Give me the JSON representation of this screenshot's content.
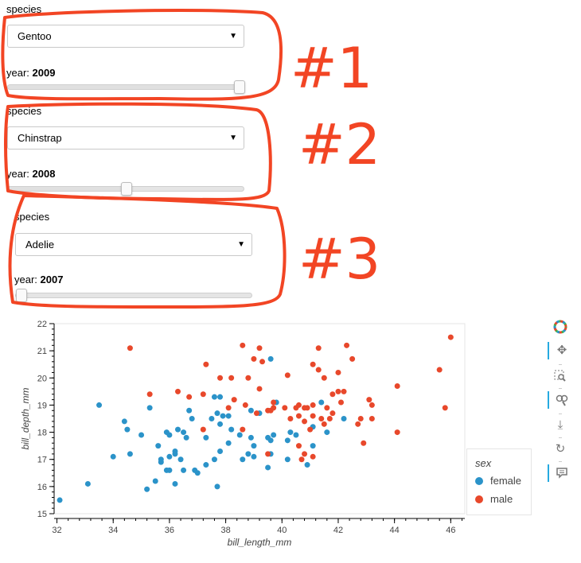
{
  "widgets": [
    {
      "species_label": "species",
      "selected": "Gentoo",
      "year_label": "year: ",
      "year_value": "2009",
      "slider_fraction": 1.0
    },
    {
      "species_label": "species",
      "selected": "Chinstrap",
      "year_label": "year: ",
      "year_value": "2008",
      "slider_fraction": 0.5
    },
    {
      "species_label": "species",
      "selected": "Adelie",
      "year_label": "year: ",
      "year_value": "2007",
      "slider_fraction": 0.0
    }
  ],
  "annotations": [
    "#1",
    "#2",
    "#3"
  ],
  "colors": {
    "annotation": "#f24524",
    "female": "#2b93c9",
    "male": "#e8482b"
  },
  "toolbar": [
    "bokeh-logo-icon",
    "pan-icon",
    "box-zoom-icon",
    "wheel-zoom-icon",
    "save-icon",
    "reset-icon",
    "hover-icon"
  ],
  "chart_data": {
    "type": "scatter",
    "xlabel": "bill_length_mm",
    "ylabel": "bill_depth_mm",
    "xlim": [
      31.9,
      46.5
    ],
    "ylim": [
      15,
      22
    ],
    "xticks": [
      32,
      34,
      36,
      38,
      40,
      42,
      44,
      46
    ],
    "yticks": [
      15,
      16,
      17,
      18,
      19,
      20,
      21,
      22
    ],
    "legend_title": "sex",
    "legend_position": "right",
    "series": [
      {
        "name": "female",
        "color": "#2b93c9",
        "points": [
          [
            32.1,
            15.5
          ],
          [
            33.1,
            16.1
          ],
          [
            33.5,
            19.0
          ],
          [
            34.0,
            17.1
          ],
          [
            34.4,
            18.4
          ],
          [
            34.5,
            18.1
          ],
          [
            34.6,
            17.2
          ],
          [
            35.0,
            17.9
          ],
          [
            35.2,
            15.9
          ],
          [
            35.3,
            18.9
          ],
          [
            35.5,
            16.2
          ],
          [
            35.6,
            17.5
          ],
          [
            35.7,
            17.0
          ],
          [
            35.7,
            16.9
          ],
          [
            35.9,
            16.6
          ],
          [
            35.9,
            18.0
          ],
          [
            36.0,
            16.6
          ],
          [
            36.0,
            17.9
          ],
          [
            36.0,
            17.1
          ],
          [
            36.2,
            16.1
          ],
          [
            36.2,
            17.3
          ],
          [
            36.2,
            17.2
          ],
          [
            36.3,
            18.1
          ],
          [
            36.4,
            17.0
          ],
          [
            36.5,
            16.6
          ],
          [
            36.5,
            18.0
          ],
          [
            36.6,
            17.8
          ],
          [
            36.7,
            18.8
          ],
          [
            36.8,
            18.5
          ],
          [
            36.9,
            16.6
          ],
          [
            37.0,
            16.5
          ],
          [
            37.3,
            17.8
          ],
          [
            37.3,
            16.8
          ],
          [
            37.5,
            18.5
          ],
          [
            37.6,
            17.0
          ],
          [
            37.6,
            19.3
          ],
          [
            37.7,
            16.0
          ],
          [
            37.7,
            18.7
          ],
          [
            37.8,
            17.3
          ],
          [
            37.8,
            18.3
          ],
          [
            37.9,
            18.6
          ],
          [
            38.1,
            17.6
          ],
          [
            38.1,
            18.6
          ],
          [
            38.2,
            18.1
          ],
          [
            38.5,
            17.9
          ],
          [
            38.6,
            17.0
          ],
          [
            38.8,
            17.2
          ],
          [
            38.9,
            17.8
          ],
          [
            38.9,
            18.8
          ],
          [
            39.0,
            17.1
          ],
          [
            39.0,
            17.5
          ],
          [
            39.2,
            18.7
          ],
          [
            39.5,
            17.8
          ],
          [
            39.5,
            16.7
          ],
          [
            39.6,
            17.2
          ],
          [
            39.6,
            17.7
          ],
          [
            39.7,
            17.9
          ],
          [
            39.8,
            19.1
          ],
          [
            40.2,
            17.0
          ],
          [
            40.2,
            17.7
          ],
          [
            40.3,
            18.0
          ],
          [
            40.5,
            17.9
          ],
          [
            40.9,
            16.8
          ],
          [
            41.1,
            17.5
          ],
          [
            41.1,
            18.2
          ],
          [
            41.4,
            19.1
          ],
          [
            41.6,
            18.0
          ],
          [
            42.2,
            18.5
          ],
          [
            39.6,
            20.7
          ],
          [
            37.8,
            19.3
          ]
        ]
      },
      {
        "name": "male",
        "color": "#e8482b",
        "points": [
          [
            34.6,
            21.1
          ],
          [
            35.3,
            19.4
          ],
          [
            36.3,
            19.5
          ],
          [
            36.7,
            19.3
          ],
          [
            37.2,
            19.4
          ],
          [
            37.3,
            20.5
          ],
          [
            37.8,
            20.0
          ],
          [
            38.1,
            18.9
          ],
          [
            38.2,
            20.0
          ],
          [
            38.3,
            19.2
          ],
          [
            38.6,
            21.2
          ],
          [
            38.7,
            19.0
          ],
          [
            38.8,
            20.0
          ],
          [
            39.0,
            20.7
          ],
          [
            39.1,
            18.7
          ],
          [
            39.2,
            19.6
          ],
          [
            39.2,
            21.1
          ],
          [
            39.3,
            20.6
          ],
          [
            39.5,
            18.8
          ],
          [
            39.6,
            18.8
          ],
          [
            39.7,
            18.9
          ],
          [
            39.7,
            19.1
          ],
          [
            40.1,
            18.9
          ],
          [
            40.2,
            20.1
          ],
          [
            40.3,
            18.5
          ],
          [
            40.5,
            18.9
          ],
          [
            40.6,
            18.6
          ],
          [
            40.6,
            19.0
          ],
          [
            40.8,
            18.4
          ],
          [
            40.8,
            18.9
          ],
          [
            40.9,
            18.9
          ],
          [
            41.0,
            18.1
          ],
          [
            41.1,
            18.6
          ],
          [
            41.1,
            19.0
          ],
          [
            41.3,
            21.1
          ],
          [
            41.3,
            20.3
          ],
          [
            41.4,
            18.5
          ],
          [
            41.5,
            18.3
          ],
          [
            41.6,
            18.9
          ],
          [
            41.7,
            18.5
          ],
          [
            41.8,
            19.4
          ],
          [
            42.0,
            20.2
          ],
          [
            42.1,
            19.1
          ],
          [
            42.3,
            21.2
          ],
          [
            42.5,
            20.7
          ],
          [
            42.7,
            18.3
          ],
          [
            42.8,
            18.5
          ],
          [
            43.1,
            19.2
          ],
          [
            43.2,
            19.0
          ],
          [
            44.1,
            19.7
          ],
          [
            45.6,
            20.3
          ],
          [
            45.8,
            18.9
          ],
          [
            46.0,
            21.5
          ],
          [
            41.1,
            17.1
          ],
          [
            40.7,
            17.0
          ],
          [
            42.2,
            19.5
          ],
          [
            41.8,
            18.7
          ],
          [
            43.2,
            18.5
          ],
          [
            42.9,
            17.6
          ],
          [
            44.1,
            18.0
          ],
          [
            40.8,
            17.2
          ],
          [
            40.6,
            17.5
          ],
          [
            38.6,
            18.1
          ],
          [
            39.5,
            17.2
          ],
          [
            42.0,
            19.5
          ],
          [
            37.2,
            18.1
          ],
          [
            41.5,
            20.0
          ],
          [
            41.1,
            20.5
          ]
        ]
      }
    ]
  }
}
